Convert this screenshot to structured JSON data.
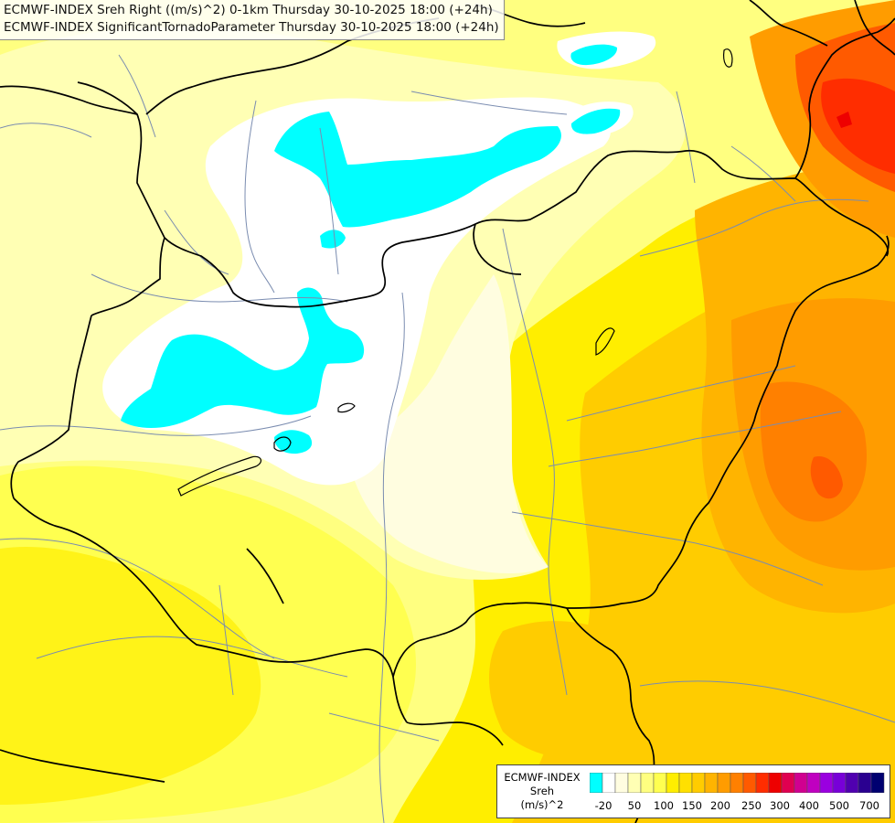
{
  "title": {
    "line1": "ECMWF-INDEX Sreh Right ((m/s)^2) 0-1km Thursday 30-10-2025 18:00 (+24h)",
    "line2": "ECMWF-INDEX SignificantTornadoParameter Thursday 30-10-2025 18:00 (+24h)"
  },
  "legend": {
    "line1": "ECMWF-INDEX",
    "line2": "Sreh",
    "line3": "(m/s)^2",
    "colors": [
      "#00ffff",
      "#ffffff",
      "#fffde0",
      "#ffffb4",
      "#ffff80",
      "#ffff50",
      "#ffee00",
      "#ffe000",
      "#ffcc00",
      "#ffb400",
      "#ff9c00",
      "#ff8000",
      "#ff5a00",
      "#ff2d00",
      "#ee0000",
      "#e00050",
      "#d00090",
      "#c000c0",
      "#9a00e0",
      "#7800d8",
      "#5000b0",
      "#2a0090",
      "#000070"
    ],
    "ticks": [
      "-20",
      "50",
      "100",
      "150",
      "200",
      "250",
      "300",
      "400",
      "500",
      "700"
    ]
  },
  "colors": {
    "background": "#ffff80",
    "borders": "#000000",
    "rivers": "#7a8cb0"
  }
}
